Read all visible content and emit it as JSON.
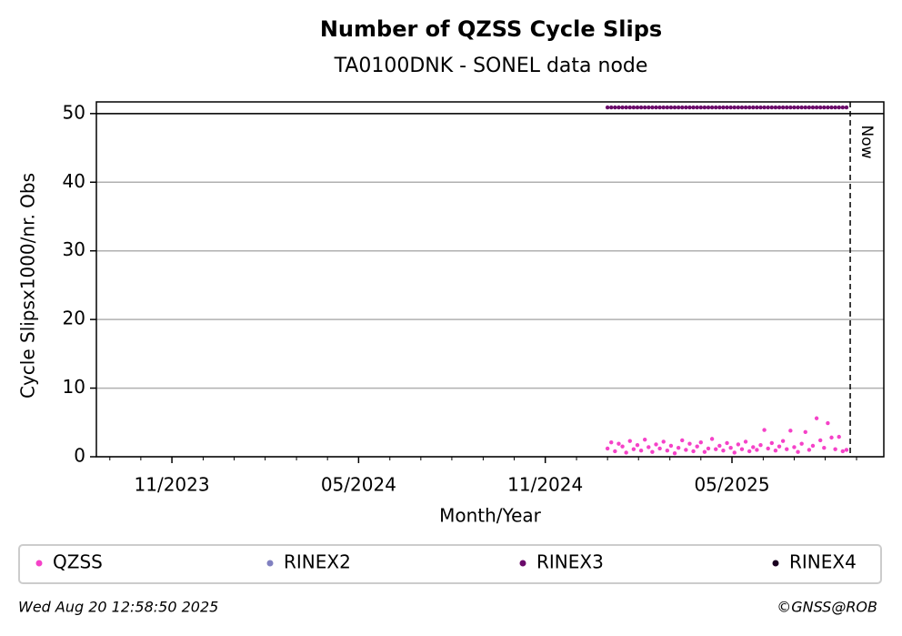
{
  "chart_data": {
    "type": "scatter",
    "title": "Number of QZSS Cycle Slips",
    "subtitle": "TA0100DNK - SONEL data node",
    "x_label": "Month/Year",
    "y_label": "Cycle Slipsx1000/nr. Obs",
    "xlim": [
      2023.631,
      2025.74
    ],
    "ylim": [
      0,
      51.7
    ],
    "xticks": [
      {
        "value": 2023.8333,
        "label": "11/2023"
      },
      {
        "value": 2024.3333,
        "label": "05/2024"
      },
      {
        "value": 2024.8333,
        "label": "11/2024"
      },
      {
        "value": 2025.3333,
        "label": "05/2025"
      }
    ],
    "xminor_ticks": [
      2023.667,
      2023.75,
      2023.917,
      2024.0,
      2024.083,
      2024.167,
      2024.25,
      2024.417,
      2024.5,
      2024.583,
      2024.667,
      2024.75,
      2024.917,
      2025.0,
      2025.083,
      2025.167,
      2025.25,
      2025.417,
      2025.5,
      2025.583,
      2025.667
    ],
    "yticks": [
      0,
      10,
      20,
      30,
      40,
      50
    ],
    "grid": true,
    "hline": 50,
    "now": {
      "x": 2025.65,
      "label": "Now"
    },
    "series": [
      {
        "name": "QZSS",
        "color": "#f542c8",
        "x": [
          2025.0,
          2025.01,
          2025.02,
          2025.03,
          2025.04,
          2025.05,
          2025.06,
          2025.07,
          2025.08,
          2025.09,
          2025.1,
          2025.11,
          2025.12,
          2025.13,
          2025.14,
          2025.15,
          2025.16,
          2025.17,
          2025.18,
          2025.19,
          2025.2,
          2025.21,
          2025.22,
          2025.23,
          2025.24,
          2025.25,
          2025.26,
          2025.27,
          2025.28,
          2025.29,
          2025.3,
          2025.31,
          2025.32,
          2025.33,
          2025.34,
          2025.35,
          2025.36,
          2025.37,
          2025.38,
          2025.39,
          2025.4,
          2025.41,
          2025.42,
          2025.43,
          2025.44,
          2025.45,
          2025.46,
          2025.47,
          2025.48,
          2025.49,
          2025.5,
          2025.51,
          2025.52,
          2025.53,
          2025.54,
          2025.55,
          2025.56,
          2025.57,
          2025.58,
          2025.59,
          2025.6,
          2025.61,
          2025.62,
          2025.63,
          2025.64
        ],
        "values": [
          1.2,
          2.1,
          0.8,
          1.9,
          1.5,
          0.6,
          2.3,
          1.1,
          1.7,
          0.9,
          2.5,
          1.4,
          0.7,
          1.8,
          1.2,
          2.2,
          0.9,
          1.6,
          0.5,
          1.3,
          2.4,
          1.0,
          1.9,
          0.8,
          1.5,
          2.1,
          0.7,
          1.2,
          2.6,
          1.1,
          1.6,
          0.9,
          2.0,
          1.3,
          0.6,
          1.8,
          1.1,
          2.2,
          0.8,
          1.4,
          1.0,
          1.7,
          3.9,
          1.2,
          2.0,
          0.9,
          1.5,
          2.3,
          1.1,
          3.8,
          1.4,
          0.7,
          1.9,
          3.6,
          1.0,
          1.6,
          5.6,
          2.4,
          1.3,
          4.9,
          2.8,
          1.1,
          2.9,
          0.8,
          1.0
        ]
      },
      {
        "name": "RINEX2",
        "color": "#8080c0",
        "x": [],
        "values": []
      },
      {
        "name": "RINEX3",
        "color": "#6a0a6a",
        "x": [
          2025.0,
          2025.01,
          2025.02,
          2025.03,
          2025.04,
          2025.05,
          2025.06,
          2025.07,
          2025.08,
          2025.09,
          2025.1,
          2025.11,
          2025.12,
          2025.13,
          2025.14,
          2025.15,
          2025.16,
          2025.17,
          2025.18,
          2025.19,
          2025.2,
          2025.21,
          2025.22,
          2025.23,
          2025.24,
          2025.25,
          2025.26,
          2025.27,
          2025.28,
          2025.29,
          2025.3,
          2025.31,
          2025.32,
          2025.33,
          2025.34,
          2025.35,
          2025.36,
          2025.37,
          2025.38,
          2025.39,
          2025.4,
          2025.41,
          2025.42,
          2025.43,
          2025.44,
          2025.45,
          2025.46,
          2025.47,
          2025.48,
          2025.49,
          2025.5,
          2025.51,
          2025.52,
          2025.53,
          2025.54,
          2025.55,
          2025.56,
          2025.57,
          2025.58,
          2025.59,
          2025.6,
          2025.61,
          2025.62,
          2025.63,
          2025.64
        ],
        "values": [
          50.9,
          50.9,
          50.9,
          50.9,
          50.9,
          50.9,
          50.9,
          50.9,
          50.9,
          50.9,
          50.9,
          50.9,
          50.9,
          50.9,
          50.9,
          50.9,
          50.9,
          50.9,
          50.9,
          50.9,
          50.9,
          50.9,
          50.9,
          50.9,
          50.9,
          50.9,
          50.9,
          50.9,
          50.9,
          50.9,
          50.9,
          50.9,
          50.9,
          50.9,
          50.9,
          50.9,
          50.9,
          50.9,
          50.9,
          50.9,
          50.9,
          50.9,
          50.9,
          50.9,
          50.9,
          50.9,
          50.9,
          50.9,
          50.9,
          50.9,
          50.9,
          50.9,
          50.9,
          50.9,
          50.9,
          50.9,
          50.9,
          50.9,
          50.9,
          50.9,
          50.9,
          50.9,
          50.9,
          50.9,
          50.9
        ]
      },
      {
        "name": "RINEX4",
        "color": "#1a0020",
        "x": [],
        "values": []
      }
    ],
    "footer_left": "Wed Aug 20 12:58:50 2025",
    "footer_right": "©GNSS@ROB"
  }
}
